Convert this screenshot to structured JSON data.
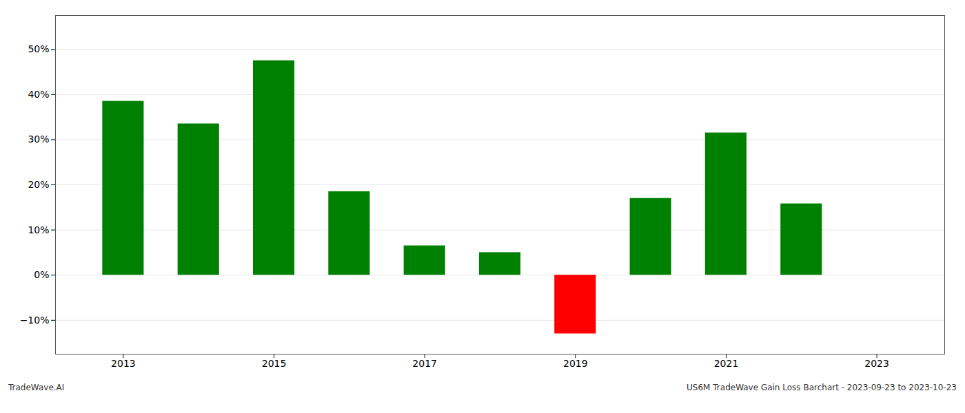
{
  "chart_data": {
    "type": "bar",
    "x": [
      2013,
      2014,
      2015,
      2016,
      2017,
      2018,
      2019,
      2020,
      2021,
      2022
    ],
    "values": [
      0.385,
      0.335,
      0.475,
      0.185,
      0.065,
      0.05,
      -0.13,
      0.17,
      0.315,
      0.158
    ],
    "colors": [
      "#008000",
      "#008000",
      "#008000",
      "#008000",
      "#008000",
      "#008000",
      "#ff0000",
      "#008000",
      "#008000",
      "#008000"
    ],
    "xlim": [
      2012.1,
      2023.9
    ],
    "xticks": [
      2013,
      2015,
      2017,
      2019,
      2021,
      2023
    ],
    "ylim": [
      -0.175,
      0.575
    ],
    "yticks": [
      {
        "value": -0.1,
        "label": "−10%"
      },
      {
        "value": 0.0,
        "label": "0%"
      },
      {
        "value": 0.1,
        "label": "10%"
      },
      {
        "value": 0.2,
        "label": "20%"
      },
      {
        "value": 0.3,
        "label": "30%"
      },
      {
        "value": 0.4,
        "label": "40%"
      },
      {
        "value": 0.5,
        "label": "50%"
      }
    ],
    "grid": true,
    "annotations": [
      "TradeWave.AI",
      "US6M TradeWave Gain Loss Barchart - 2023-09-23 to 2023-10-23"
    ]
  }
}
